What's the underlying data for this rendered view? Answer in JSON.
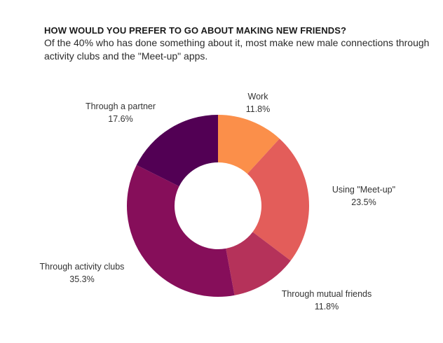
{
  "header": {
    "title": "HOW WOULD YOU PREFER TO GO ABOUT MAKING NEW FRIENDS?",
    "subtitle": "Of the 40% who has done something about it, most make new male connections through activity clubs and the \"Meet-up\" apps."
  },
  "chart_data": {
    "type": "pie",
    "donut": true,
    "start": "12 o'clock",
    "direction": "clockwise",
    "slices": [
      {
        "label": "Work",
        "value": 11.8,
        "value_label": "11.8%",
        "color": "#fb8f4a"
      },
      {
        "label": "Using \"Meet-up\"",
        "value": 23.5,
        "value_label": "23.5%",
        "color": "#e35d5a"
      },
      {
        "label": "Through mutual friends",
        "value": 11.8,
        "value_label": "11.8%",
        "color": "#b5325a"
      },
      {
        "label": "Through activity clubs",
        "value": 35.3,
        "value_label": "35.3%",
        "color": "#860e5a"
      },
      {
        "label": "Through a partner",
        "value": 17.6,
        "value_label": "17.6%",
        "color": "#520054"
      }
    ]
  }
}
